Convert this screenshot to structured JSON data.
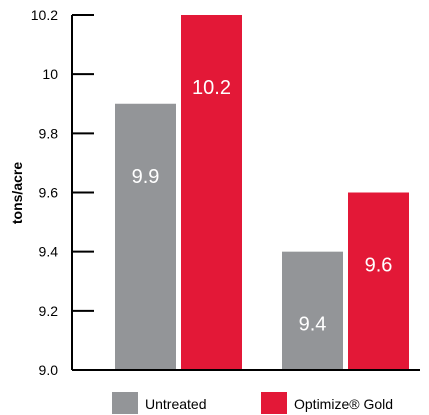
{
  "chart_data": {
    "type": "bar",
    "title": "",
    "xlabel": "",
    "ylabel": "tons/acre",
    "ylim": [
      9.0,
      10.2
    ],
    "yticks": [
      "10.2",
      "10",
      "9.8",
      "9.6",
      "9.4",
      "9.2",
      "9.0"
    ],
    "ytick_values": [
      10.2,
      10.0,
      9.8,
      9.6,
      9.4,
      9.2,
      9.0
    ],
    "categories": [
      "",
      ""
    ],
    "grid": false,
    "legend_position": "bottom",
    "series": [
      {
        "name": "Untreated",
        "color": "#939598",
        "values": [
          9.9,
          9.4
        ],
        "labels": [
          "9.9",
          "9.4"
        ]
      },
      {
        "name": "Optimize® Gold",
        "color": "#e31837",
        "values": [
          10.2,
          9.6
        ],
        "labels": [
          "10.2",
          "9.6"
        ]
      }
    ]
  }
}
